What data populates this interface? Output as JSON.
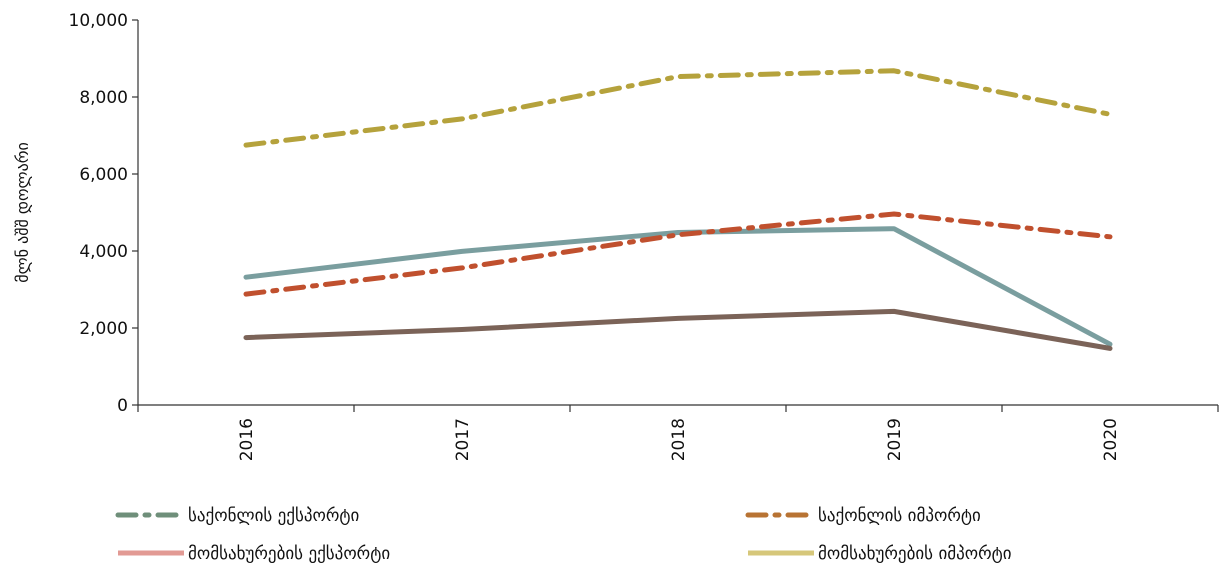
{
  "chart_data": {
    "type": "line",
    "categories": [
      "2016",
      "2017",
      "2018",
      "2019",
      "2020"
    ],
    "ylabel": "მლნ აშშ დოლარი",
    "ylim": [
      0,
      10000
    ],
    "yticks": [
      "0",
      "2,000",
      "4,000",
      "6,000",
      "8,000",
      "10,000"
    ],
    "ytick_values": [
      0,
      2000,
      4000,
      6000,
      8000,
      10000
    ],
    "grid": false,
    "legend_position": "bottom",
    "series": [
      {
        "name": "საქონლის ექსპორტი",
        "values": [
          3320,
          3990,
          4480,
          4580,
          1580
        ],
        "color": "#7a9e9f",
        "style": "solid"
      },
      {
        "name": "საქონლის იმპორტი",
        "values": [
          2880,
          3560,
          4420,
          4960,
          4370
        ],
        "color": "#c0502e",
        "style": "dashdot"
      },
      {
        "name": "მომსახურების ექსპორტი",
        "values": [
          1750,
          1960,
          2250,
          2430,
          1470
        ],
        "color": "#7b6358",
        "style": "solid"
      },
      {
        "name": "მომსახურების იმპორტი",
        "values": [
          6750,
          7430,
          8530,
          8680,
          7550
        ],
        "color": "#b5a23c",
        "style": "dashdot"
      }
    ],
    "legend": [
      {
        "label": "საქონლის ექსპორტი",
        "color": "#6f8f7a",
        "style": "dashdot"
      },
      {
        "label": "საქონლის იმპორტი",
        "color": "#b87333",
        "style": "dashdot"
      },
      {
        "label": "მომსახურების ექსპორტი",
        "color": "#e29a94",
        "style": "solid"
      },
      {
        "label": "მომსახურების იმპორტი",
        "color": "#d6c77a",
        "style": "solid"
      }
    ]
  }
}
